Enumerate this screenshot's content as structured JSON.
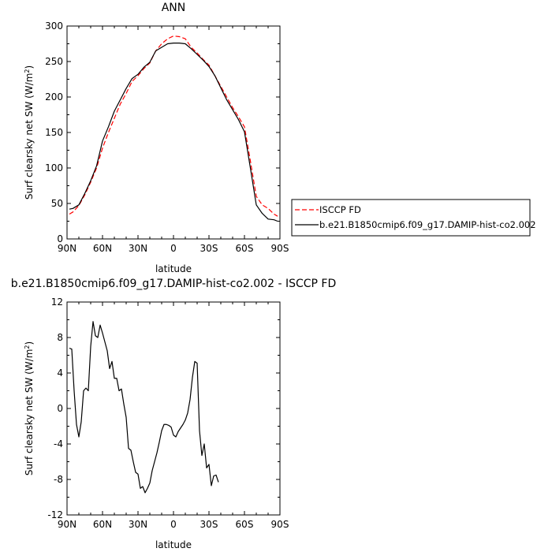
{
  "chart_data": [
    {
      "type": "line",
      "title": "ANN",
      "xlabel": "latitude",
      "ylabel": "Surf clearsky net SW (W/m²)",
      "ylabel_main": "Surf clearsky net SW (W/m",
      "ylabel_sup": "2",
      "ylabel_end": ")",
      "xlim": [
        90,
        -90
      ],
      "ylim": [
        0,
        300
      ],
      "xticks": [
        {
          "value": 90,
          "label": "90N"
        },
        {
          "value": 60,
          "label": "60N"
        },
        {
          "value": 30,
          "label": "30N"
        },
        {
          "value": 0,
          "label": "0"
        },
        {
          "value": -30,
          "label": "30S"
        },
        {
          "value": -60,
          "label": "60S"
        },
        {
          "value": -90,
          "label": "90S"
        }
      ],
      "yticks": [
        0,
        50,
        100,
        150,
        200,
        250,
        300
      ],
      "legend_position": "outside-right",
      "series": [
        {
          "name": "ISCCP FD",
          "color": "#ff0000",
          "dash": "dashed",
          "points": [
            [
              88,
              35
            ],
            [
              85,
              38
            ],
            [
              80,
              47
            ],
            [
              75,
              62
            ],
            [
              70,
              80
            ],
            [
              65,
              100
            ],
            [
              60,
              128
            ],
            [
              55,
              150
            ],
            [
              50,
              170
            ],
            [
              45,
              190
            ],
            [
              40,
              205
            ],
            [
              35,
              222
            ],
            [
              30,
              230
            ],
            [
              25,
              240
            ],
            [
              20,
              248
            ],
            [
              15,
              265
            ],
            [
              10,
              275
            ],
            [
              5,
              282
            ],
            [
              0,
              286
            ],
            [
              -5,
              285
            ],
            [
              -10,
              282
            ],
            [
              -15,
              270
            ],
            [
              -20,
              262
            ],
            [
              -25,
              253
            ],
            [
              -30,
              245
            ],
            [
              -35,
              230
            ],
            [
              -40,
              215
            ],
            [
              -45,
              200
            ],
            [
              -50,
              185
            ],
            [
              -55,
              172
            ],
            [
              -60,
              158
            ],
            [
              -65,
              110
            ],
            [
              -70,
              60
            ],
            [
              -75,
              48
            ],
            [
              -80,
              43
            ],
            [
              -85,
              35
            ],
            [
              -88,
              32
            ]
          ]
        },
        {
          "name": "b.e21.B1850cmip6.f09_g17.DAMIP-hist-co2.002",
          "color": "#000000",
          "dash": "solid",
          "points": [
            [
              88,
              42
            ],
            [
              85,
              43
            ],
            [
              80,
              48
            ],
            [
              75,
              64
            ],
            [
              70,
              82
            ],
            [
              65,
              103
            ],
            [
              60,
              138
            ],
            [
              55,
              158
            ],
            [
              50,
              180
            ],
            [
              45,
              196
            ],
            [
              40,
              212
            ],
            [
              35,
              226
            ],
            [
              30,
              232
            ],
            [
              25,
              242
            ],
            [
              20,
              249
            ],
            [
              15,
              265
            ],
            [
              10,
              270
            ],
            [
              5,
              275
            ],
            [
              0,
              276
            ],
            [
              -5,
              276
            ],
            [
              -10,
              275
            ],
            [
              -15,
              268
            ],
            [
              -20,
              260
            ],
            [
              -25,
              252
            ],
            [
              -30,
              243
            ],
            [
              -35,
              230
            ],
            [
              -40,
              213
            ],
            [
              -45,
              196
            ],
            [
              -50,
              182
            ],
            [
              -55,
              168
            ],
            [
              -60,
              151
            ],
            [
              -65,
              100
            ],
            [
              -70,
              48
            ],
            [
              -75,
              36
            ],
            [
              -80,
              28
            ],
            [
              -85,
              27
            ],
            [
              -88,
              25
            ]
          ]
        }
      ]
    },
    {
      "type": "line",
      "title": "b.e21.B1850cmip6.f09_g17.DAMIP-hist-co2.002 - ISCCP FD",
      "xlabel": "latitude",
      "ylabel": "Surf clearsky net SW (W/m²)",
      "ylabel_main": "Surf clearsky net SW (W/m",
      "ylabel_sup": "2",
      "ylabel_end": ")",
      "xlim": [
        90,
        -90
      ],
      "ylim": [
        -12,
        12
      ],
      "xticks": [
        {
          "value": 90,
          "label": "90N"
        },
        {
          "value": 60,
          "label": "60N"
        },
        {
          "value": 30,
          "label": "30N"
        },
        {
          "value": 0,
          "label": "0"
        },
        {
          "value": -30,
          "label": "30S"
        },
        {
          "value": -60,
          "label": "60S"
        },
        {
          "value": -90,
          "label": "90S"
        }
      ],
      "yticks": [
        -12,
        -8,
        -4,
        0,
        4,
        8,
        12
      ],
      "series": [
        {
          "color": "#000000",
          "dash": "solid",
          "points": [
            [
              88,
              6.8
            ],
            [
              86,
              6.7
            ],
            [
              84,
              2
            ],
            [
              82,
              -1.8
            ],
            [
              80,
              -3.2
            ],
            [
              78,
              -1.5
            ],
            [
              76,
              2
            ],
            [
              74,
              2.3
            ],
            [
              72,
              2
            ],
            [
              70,
              7
            ],
            [
              68,
              9.8
            ],
            [
              66,
              8.2
            ],
            [
              64,
              8
            ],
            [
              62,
              9.4
            ],
            [
              60,
              8.5
            ],
            [
              58,
              7.5
            ],
            [
              56,
              6.5
            ],
            [
              54,
              4.5
            ],
            [
              52,
              5.3
            ],
            [
              50,
              3.4
            ],
            [
              48,
              3.4
            ],
            [
              46,
              2
            ],
            [
              44,
              2.2
            ],
            [
              42,
              0.5
            ],
            [
              40,
              -1
            ],
            [
              38,
              -4.5
            ],
            [
              36,
              -4.7
            ],
            [
              34,
              -6
            ],
            [
              32,
              -7.2
            ],
            [
              30,
              -7.4
            ],
            [
              28,
              -9
            ],
            [
              26,
              -8.8
            ],
            [
              24,
              -9.5
            ],
            [
              22,
              -9
            ],
            [
              20,
              -8.4
            ],
            [
              18,
              -7
            ],
            [
              16,
              -6
            ],
            [
              14,
              -5
            ],
            [
              12,
              -3.8
            ],
            [
              10,
              -2.5
            ],
            [
              8,
              -1.8
            ],
            [
              6,
              -1.8
            ],
            [
              4,
              -1.9
            ],
            [
              2,
              -2.1
            ],
            [
              0,
              -3
            ],
            [
              -2,
              -3.2
            ],
            [
              -4,
              -2.6
            ],
            [
              -6,
              -2.2
            ],
            [
              -8,
              -1.8
            ],
            [
              -10,
              -1.3
            ],
            [
              -12,
              -0.5
            ],
            [
              -14,
              1
            ],
            [
              -16,
              3.5
            ],
            [
              -18,
              5.3
            ],
            [
              -20,
              5.1
            ],
            [
              -22,
              -2.5
            ],
            [
              -24,
              -5.3
            ],
            [
              -26,
              -4
            ],
            [
              -28,
              -6.7
            ],
            [
              -30,
              -6.3
            ],
            [
              -32,
              -8.7
            ],
            [
              -34,
              -7.6
            ],
            [
              -36,
              -7.5
            ],
            [
              -38,
              -8.3
            ]
          ]
        }
      ]
    }
  ]
}
